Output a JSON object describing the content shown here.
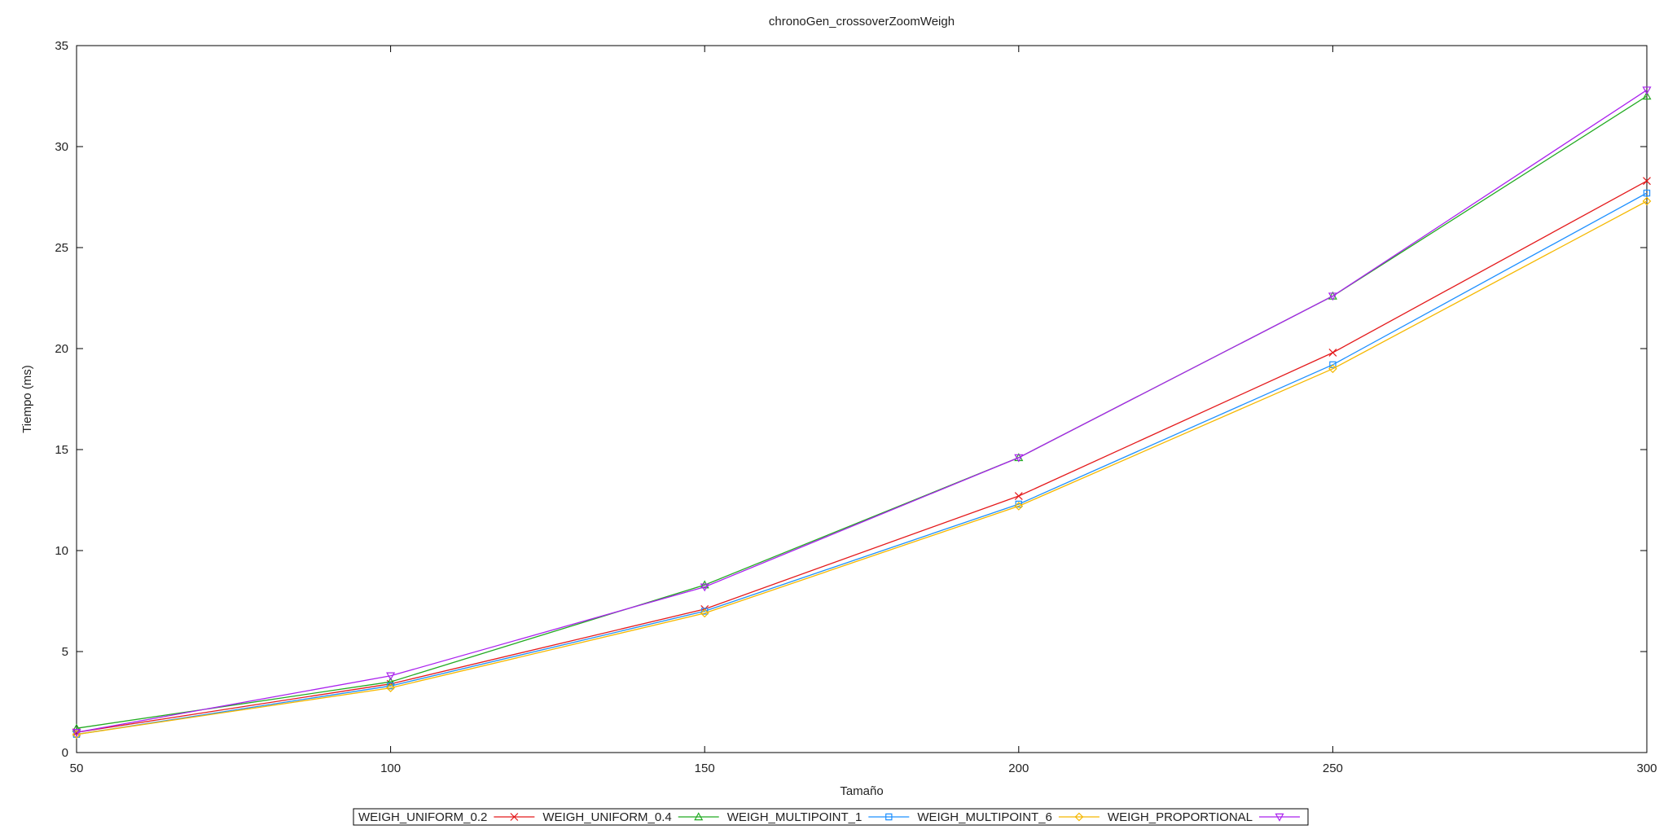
{
  "chart_data": {
    "type": "line",
    "title": "chronoGen_crossoverZoomWeigh",
    "xlabel": "Tamaño",
    "ylabel": "Tiempo (ms)",
    "x": [
      50,
      100,
      150,
      200,
      250,
      300
    ],
    "xlim": [
      50,
      300
    ],
    "ylim": [
      0,
      35
    ],
    "xticks": [
      "50",
      "100",
      "150",
      "200",
      "250",
      "300"
    ],
    "yticks": [
      "0",
      "5",
      "10",
      "15",
      "20",
      "25",
      "30",
      "35"
    ],
    "grid": false,
    "legend_position": "bottom",
    "series": [
      {
        "name": "WEIGH_UNIFORM_0.2",
        "color": "#e41a1c",
        "marker": "x",
        "values": [
          1.0,
          3.4,
          7.1,
          12.7,
          19.8,
          28.3
        ]
      },
      {
        "name": "WEIGH_UNIFORM_0.4",
        "color": "#22aa22",
        "marker": "triangle-up",
        "values": [
          1.2,
          3.5,
          8.3,
          14.6,
          22.6,
          32.5
        ]
      },
      {
        "name": "WEIGH_MULTIPOINT_1",
        "color": "#1e90ff",
        "marker": "square",
        "values": [
          0.9,
          3.3,
          7.0,
          12.3,
          19.2,
          27.7
        ]
      },
      {
        "name": "WEIGH_MULTIPOINT_6",
        "color": "#f5b800",
        "marker": "diamond",
        "values": [
          0.9,
          3.2,
          6.9,
          12.2,
          19.0,
          27.3
        ]
      },
      {
        "name": "WEIGH_PROPORTIONAL",
        "color": "#aa22ee",
        "marker": "triangle-down",
        "values": [
          1.0,
          3.8,
          8.2,
          14.6,
          22.6,
          32.8
        ]
      }
    ]
  }
}
